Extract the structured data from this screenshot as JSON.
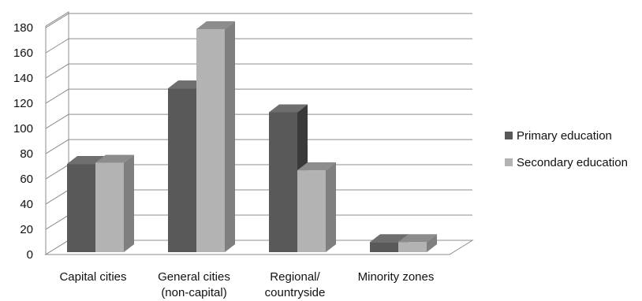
{
  "chart_data": {
    "type": "bar",
    "variant": "3d-clustered-column",
    "categories": [
      [
        "Capital cities"
      ],
      [
        "General cities",
        "(non-capital)"
      ],
      [
        "Regional/",
        "countryside"
      ],
      [
        "Minority zones"
      ]
    ],
    "series": [
      {
        "name": "Primary education",
        "values": [
          70,
          130,
          111,
          8
        ],
        "color": "#595959",
        "side_color": "#3a3a3a",
        "top_color": "#6e6e6e"
      },
      {
        "name": "Secondary education",
        "values": [
          71,
          177,
          65,
          8
        ],
        "color": "#b3b3b3",
        "side_color": "#7f7f7f",
        "top_color": "#8c8c8c"
      }
    ],
    "yticks": [
      0,
      20,
      40,
      60,
      80,
      100,
      120,
      140,
      160,
      180
    ],
    "ylim": [
      0,
      180
    ],
    "grid": true,
    "legend_position": "right"
  }
}
